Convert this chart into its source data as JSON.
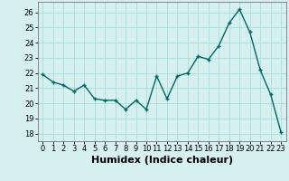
{
  "x": [
    0,
    1,
    2,
    3,
    4,
    5,
    6,
    7,
    8,
    9,
    10,
    11,
    12,
    13,
    14,
    15,
    16,
    17,
    18,
    19,
    20,
    21,
    22,
    23
  ],
  "y": [
    21.9,
    21.4,
    21.2,
    20.8,
    21.2,
    20.3,
    20.2,
    20.2,
    19.6,
    20.2,
    19.6,
    21.8,
    20.3,
    21.8,
    22.0,
    23.1,
    22.9,
    23.8,
    25.3,
    26.2,
    24.7,
    22.2,
    20.6,
    18.1
  ],
  "line_color": "#006666",
  "marker_color": "#006666",
  "bg_color": "#d5f0ef",
  "grid_color": "#aadcda",
  "xlabel": "Humidex (Indice chaleur)",
  "xlim": [
    -0.5,
    23.5
  ],
  "ylim": [
    17.5,
    26.7
  ],
  "yticks": [
    18,
    19,
    20,
    21,
    22,
    23,
    24,
    25,
    26
  ],
  "xticks": [
    0,
    1,
    2,
    3,
    4,
    5,
    6,
    7,
    8,
    9,
    10,
    11,
    12,
    13,
    14,
    15,
    16,
    17,
    18,
    19,
    20,
    21,
    22,
    23
  ],
  "tick_fontsize": 6.0,
  "xlabel_fontsize": 8.0,
  "line_width": 1.0,
  "marker_size": 3.0
}
